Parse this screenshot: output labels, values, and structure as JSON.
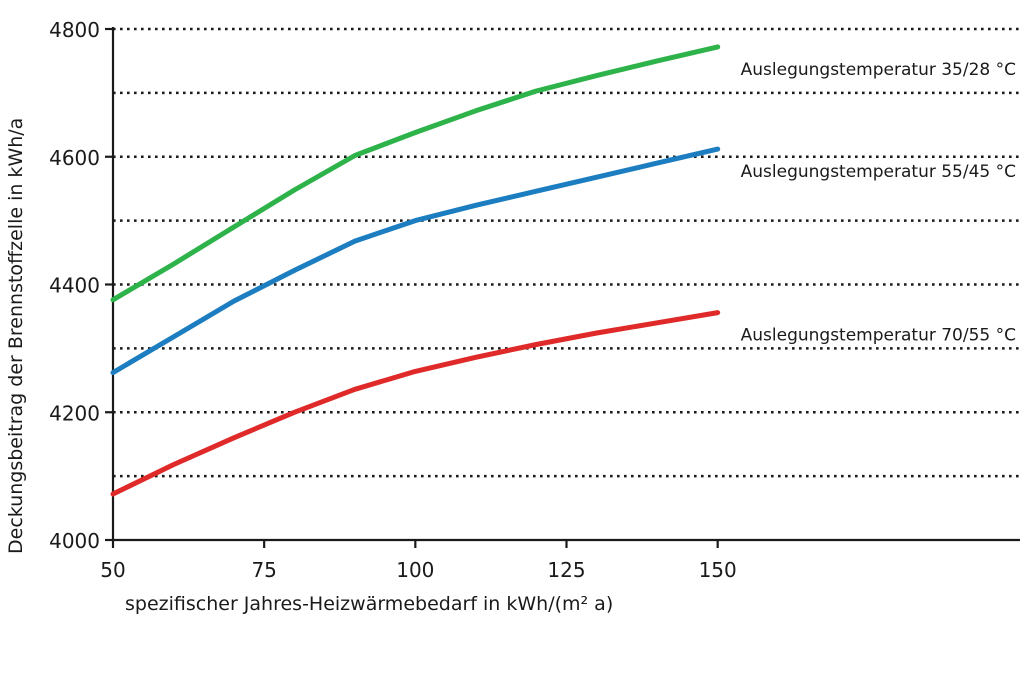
{
  "chart_data": {
    "type": "line",
    "xlabel": "spezifischer Jahres-Heizwärmebedarf in kWh/(m² a)",
    "ylabel": "Deckungsbeitrag der Brennstoffzelle in kWh/a",
    "xlim": [
      50,
      200
    ],
    "ylim": [
      4000,
      4800
    ],
    "x_ticks": [
      50,
      75,
      100,
      125,
      150
    ],
    "y_ticks": [
      4000,
      4200,
      4400,
      4600,
      4800
    ],
    "grid": "horizontal dotted every 100",
    "legend": "inline labels at line ends",
    "series": [
      {
        "name": "Auslegungstemperatur 35/28 °C",
        "color": "#2db34a",
        "points": [
          [
            50,
            4376
          ],
          [
            60,
            4432
          ],
          [
            70,
            4490
          ],
          [
            80,
            4548
          ],
          [
            90,
            4602
          ],
          [
            100,
            4638
          ],
          [
            110,
            4672
          ],
          [
            120,
            4703
          ],
          [
            130,
            4727
          ],
          [
            140,
            4750
          ],
          [
            150,
            4772
          ]
        ]
      },
      {
        "name": "Auslegungstemperatur 55/45 °C",
        "color": "#1c7dc0",
        "points": [
          [
            50,
            4262
          ],
          [
            60,
            4318
          ],
          [
            70,
            4374
          ],
          [
            80,
            4422
          ],
          [
            90,
            4468
          ],
          [
            100,
            4500
          ],
          [
            110,
            4524
          ],
          [
            120,
            4546
          ],
          [
            130,
            4568
          ],
          [
            140,
            4590
          ],
          [
            150,
            4612
          ]
        ]
      },
      {
        "name": "Auslegungstemperatur 70/55 °C",
        "color": "#e02a2a",
        "points": [
          [
            50,
            4072
          ],
          [
            60,
            4118
          ],
          [
            70,
            4160
          ],
          [
            80,
            4200
          ],
          [
            90,
            4236
          ],
          [
            100,
            4264
          ],
          [
            110,
            4286
          ],
          [
            120,
            4306
          ],
          [
            130,
            4324
          ],
          [
            140,
            4340
          ],
          [
            150,
            4356
          ]
        ]
      }
    ]
  }
}
